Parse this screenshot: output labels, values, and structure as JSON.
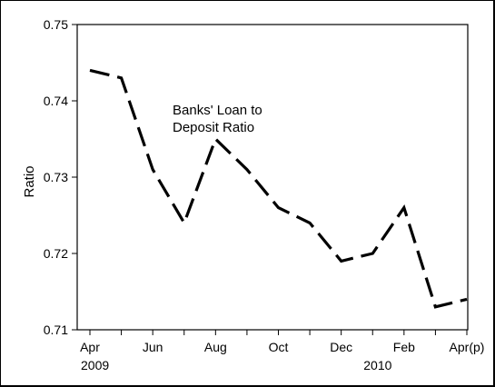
{
  "chart_data": {
    "type": "line",
    "annotation": [
      "Banks' Loan to",
      "Deposit Ratio"
    ],
    "ylabel": "Ratio",
    "xlabel": "",
    "ylim": [
      0.71,
      0.75
    ],
    "yticks": [
      0.71,
      0.72,
      0.73,
      0.74,
      0.75
    ],
    "ytick_labels": [
      "0.71",
      "0.72",
      "0.73",
      "0.74",
      "0.75"
    ],
    "x": [
      "Apr 2009",
      "May 2009",
      "Jun 2009",
      "Jul 2009",
      "Aug 2009",
      "Sep 2009",
      "Oct 2009",
      "Nov 2009",
      "Dec 2009",
      "Jan 2010",
      "Feb 2010",
      "Mar 2010",
      "Apr 2010 (p)"
    ],
    "xtick_labels": [
      "Apr",
      "",
      "Jun",
      "",
      "Aug",
      "",
      "Oct",
      "",
      "Dec",
      "",
      "Feb",
      "",
      "Apr(p)"
    ],
    "year_labels": [
      {
        "label": "2009",
        "at_index": 0
      },
      {
        "label": "2010",
        "at_index": 9
      }
    ],
    "series": [
      {
        "values": [
          0.744,
          0.743,
          0.731,
          0.724,
          0.735,
          0.731,
          0.726,
          0.724,
          0.719,
          0.72,
          0.726,
          0.713,
          0.714
        ],
        "color": "#000000",
        "style": "dashed"
      }
    ],
    "grid": false,
    "legend": "none"
  }
}
